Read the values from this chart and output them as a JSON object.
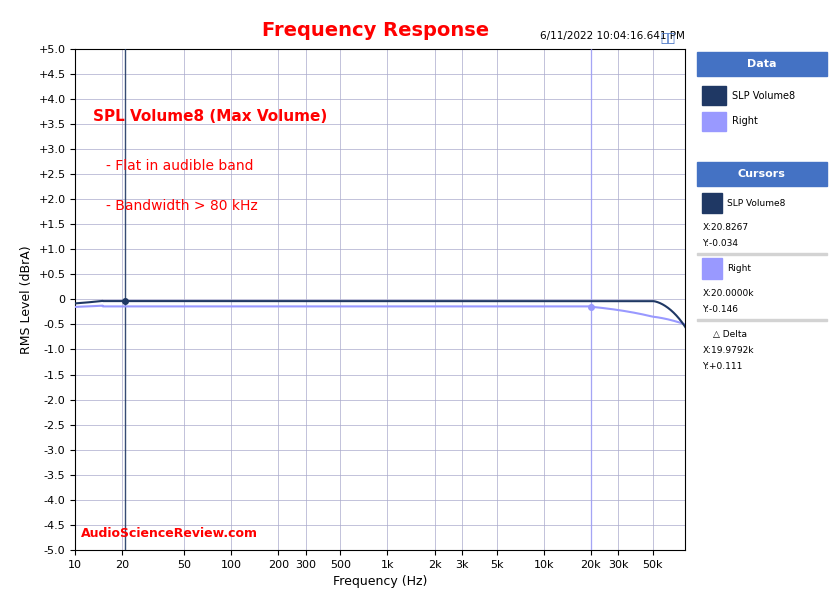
{
  "title": "Frequency Response",
  "title_color": "#FF0000",
  "timestamp": "6/11/2022 10:04:16.641 PM",
  "xlabel": "Frequency (Hz)",
  "ylabel": "RMS Level (dBrA)",
  "ylim": [
    -5.0,
    5.0
  ],
  "xlim_log": [
    10,
    80000
  ],
  "yticks": [
    -5.0,
    -4.5,
    -4.0,
    -3.5,
    -3.0,
    -2.5,
    -2.0,
    -1.5,
    -1.0,
    -0.5,
    0.0,
    0.5,
    1.0,
    1.5,
    2.0,
    2.5,
    3.0,
    3.5,
    4.0,
    4.5,
    5.0
  ],
  "ytick_labels": [
    "-5.0",
    "-4.5",
    "-4.0",
    "-3.5",
    "-3.0",
    "-2.5",
    "-2.0",
    "-1.5",
    "-1.0",
    "-0.5",
    "0",
    "+0.5",
    "+1.0",
    "+1.5",
    "+2.0",
    "+2.5",
    "+3.0",
    "+3.5",
    "+4.0",
    "+4.5",
    "+5.0"
  ],
  "xtick_positions": [
    10,
    20,
    50,
    100,
    200,
    300,
    500,
    1000,
    2000,
    3000,
    5000,
    10000,
    20000,
    30000,
    50000
  ],
  "xtick_labels": [
    "10",
    "20",
    "50",
    "100",
    "200",
    "300",
    "500",
    "1k",
    "2k",
    "3k",
    "5k",
    "10k",
    "20k",
    "30k",
    "50k"
  ],
  "annotation_lines": [
    "SPL Volume8 (Max Volume)",
    "- Flat in audible band",
    "- Bandwidth > 80 kHz"
  ],
  "annotation_color": "#FF0000",
  "watermark": "AudioScienceReview.com",
  "watermark_color": "#FF0000",
  "ap_logo_color": "#4472C4",
  "line1_color": "#1F3864",
  "line1_label": "SLP Volume8",
  "line2_color": "#9999FF",
  "line2_label": "Right",
  "cursor_line_color": "#1F3864",
  "data_box_header_color": "#4472C4",
  "cursors_box_header_color": "#4472C4",
  "background_color": "#FFFFFF",
  "plot_bg_color": "#FFFFFF",
  "grid_color": "#AAAACC",
  "border_color": "#000000"
}
